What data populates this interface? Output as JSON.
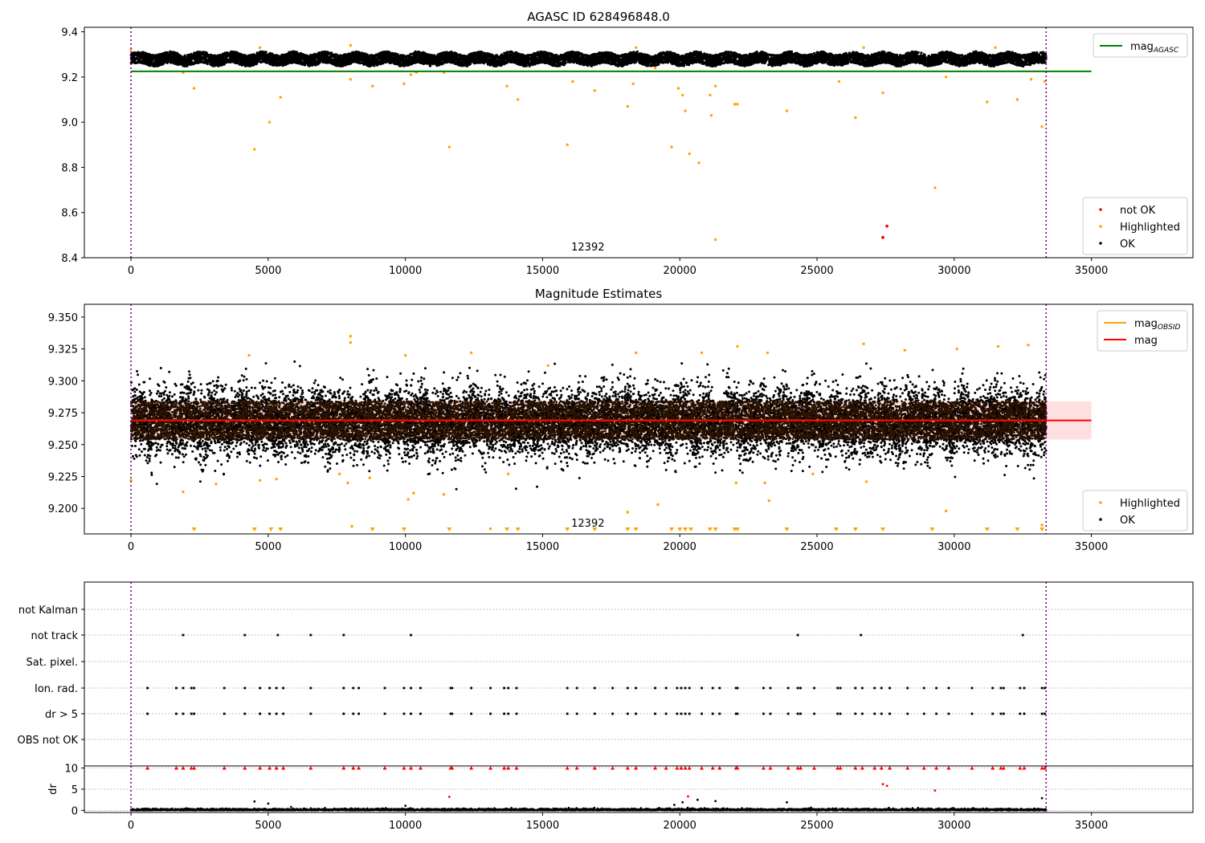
{
  "chart_data": [
    {
      "type": "scatter",
      "title": "AGASC ID 628496848.0",
      "xlim": [
        -1700,
        38700
      ],
      "ylim": [
        8.4,
        9.42
      ],
      "x_ticks": [
        0,
        5000,
        10000,
        15000,
        20000,
        25000,
        30000,
        35000
      ],
      "y_ticks": [
        8.4,
        8.6,
        8.8,
        9.0,
        9.2,
        9.4
      ],
      "grid": false,
      "legend_upper": {
        "placement": "upper-right",
        "entries": [
          {
            "name": "mag",
            "sub": "AGASC",
            "color": "#008000",
            "kind": "line"
          }
        ]
      },
      "legend_lower": {
        "placement": "lower-right",
        "entries": [
          {
            "name": "not OK",
            "color": "#ff0000",
            "kind": "dot"
          },
          {
            "name": "Highlighted",
            "color": "#ffa500",
            "kind": "dot"
          },
          {
            "name": "OK",
            "color": "#000000",
            "kind": "dot"
          }
        ]
      },
      "obsid_label": "12392",
      "obsid_label_x": 16650,
      "mag_agasc": 9.225,
      "obs_bounds": [
        0,
        33350
      ],
      "ok_band": {
        "x": [
          0,
          33350
        ],
        "center": 9.28,
        "halfwidth": 0.025
      },
      "highlighted": [
        [
          0,
          9.32
        ],
        [
          4500,
          8.88
        ],
        [
          5050,
          9.0
        ],
        [
          5450,
          9.11
        ],
        [
          2300,
          9.15
        ],
        [
          8800,
          9.16
        ],
        [
          9950,
          9.17
        ],
        [
          10200,
          9.21
        ],
        [
          11600,
          8.89
        ],
        [
          13700,
          9.16
        ],
        [
          14100,
          9.1
        ],
        [
          15900,
          8.9
        ],
        [
          16100,
          9.18
        ],
        [
          16900,
          9.14
        ],
        [
          18100,
          9.07
        ],
        [
          18300,
          9.17
        ],
        [
          19100,
          9.24
        ],
        [
          19700,
          8.89
        ],
        [
          19950,
          9.15
        ],
        [
          20100,
          9.12
        ],
        [
          20200,
          9.05
        ],
        [
          20350,
          8.86
        ],
        [
          20700,
          8.82
        ],
        [
          21100,
          9.12
        ],
        [
          21150,
          9.03
        ],
        [
          21300,
          9.16
        ],
        [
          21300,
          8.48
        ],
        [
          22000,
          9.08
        ],
        [
          22100,
          9.08
        ],
        [
          23900,
          9.05
        ],
        [
          25800,
          9.18
        ],
        [
          26400,
          9.02
        ],
        [
          27400,
          9.13
        ],
        [
          29300,
          8.71
        ],
        [
          29700,
          9.2
        ],
        [
          31200,
          9.09
        ],
        [
          32300,
          9.1
        ],
        [
          32800,
          9.19
        ],
        [
          33200,
          8.98
        ],
        [
          33300,
          9.18
        ],
        [
          8000,
          9.34
        ],
        [
          8000,
          9.19
        ],
        [
          1900,
          9.22
        ],
        [
          10400,
          9.22
        ],
        [
          11400,
          9.22
        ],
        [
          26700,
          9.33
        ],
        [
          31500,
          9.33
        ],
        [
          18400,
          9.33
        ],
        [
          4700,
          9.33
        ]
      ],
      "not_ok": [
        [
          27400,
          8.49
        ],
        [
          27550,
          8.54
        ]
      ]
    },
    {
      "type": "scatter",
      "title": "Magnitude Estimates",
      "xlim": [
        -1700,
        38700
      ],
      "ylim": [
        9.18,
        9.36
      ],
      "x_ticks": [
        0,
        5000,
        10000,
        15000,
        20000,
        25000,
        30000,
        35000
      ],
      "y_ticks": [
        9.2,
        9.225,
        9.25,
        9.275,
        9.3,
        9.325,
        9.35
      ],
      "grid": false,
      "legend_upper": {
        "placement": "upper-right",
        "entries": [
          {
            "name": "mag",
            "sub": "OBSID",
            "color": "#ffa500",
            "kind": "line"
          },
          {
            "name": "mag",
            "sub": "",
            "color": "#ff0000",
            "kind": "line"
          }
        ]
      },
      "legend_lower": {
        "placement": "lower-right",
        "entries": [
          {
            "name": "Highlighted",
            "color": "#ffa500",
            "kind": "dot"
          },
          {
            "name": "OK",
            "color": "#000000",
            "kind": "dot"
          }
        ]
      },
      "obsid_label": "12392",
      "obsid_label_x": 16650,
      "mag": 9.269,
      "mag_band": [
        9.254,
        9.284
      ],
      "mag_obsid": 9.269,
      "obs_bounds": [
        0,
        33350
      ],
      "highlighted": [
        [
          0,
          9.222
        ],
        [
          1900,
          9.213
        ],
        [
          3100,
          9.219
        ],
        [
          4700,
          9.222
        ],
        [
          5300,
          9.223
        ],
        [
          7600,
          9.227
        ],
        [
          7900,
          9.22
        ],
        [
          8000,
          9.335
        ],
        [
          8000,
          9.33
        ],
        [
          8050,
          9.186
        ],
        [
          8700,
          9.224
        ],
        [
          10100,
          9.207
        ],
        [
          10300,
          9.212
        ],
        [
          11400,
          9.211
        ],
        [
          13100,
          9.184
        ],
        [
          13750,
          9.227
        ],
        [
          18100,
          9.197
        ],
        [
          19200,
          9.203
        ],
        [
          22050,
          9.22
        ],
        [
          22100,
          9.327
        ],
        [
          23100,
          9.22
        ],
        [
          23250,
          9.206
        ],
        [
          24850,
          9.227
        ],
        [
          26800,
          9.221
        ],
        [
          29700,
          9.198
        ],
        [
          31600,
          9.327
        ],
        [
          32700,
          9.328
        ],
        [
          33200,
          9.187
        ],
        [
          26700,
          9.329
        ],
        [
          18400,
          9.322
        ],
        [
          4300,
          9.32
        ],
        [
          10000,
          9.32
        ],
        [
          12400,
          9.322
        ],
        [
          20800,
          9.322
        ],
        [
          28200,
          9.324
        ],
        [
          30100,
          9.325
        ],
        [
          23200,
          9.322
        ],
        [
          15200,
          9.312
        ]
      ],
      "clipped_low_x": [
        2300,
        4500,
        5100,
        5450,
        8800,
        9950,
        11600,
        13700,
        14100,
        15900,
        16900,
        18100,
        18400,
        19700,
        20000,
        20200,
        20400,
        21100,
        21300,
        22000,
        22100,
        23900,
        25700,
        26400,
        27400,
        29200,
        31200,
        32300,
        33200
      ]
    },
    {
      "type": "scatter",
      "subtype": "flag-strip",
      "xlim": [
        -1700,
        38700
      ],
      "flags": [
        "not Kalman",
        "not track",
        "Sat. pixel.",
        "Ion. rad.",
        "dr > 5",
        "OBS not OK"
      ],
      "grid": "dotted-horizontal",
      "obs_bounds": [
        0,
        33350
      ],
      "not_track_x": [
        1900,
        4150,
        5350,
        6550,
        7750,
        10200,
        24300,
        26600,
        32500
      ],
      "ion_rad_x": [
        600,
        1650,
        1900,
        2200,
        2300,
        3400,
        4150,
        4700,
        5050,
        5300,
        5550,
        6550,
        7750,
        8100,
        8300,
        9250,
        9950,
        10200,
        10550,
        11650,
        11700,
        12400,
        13100,
        13600,
        13750,
        14050,
        15900,
        16250,
        16900,
        17550,
        18100,
        18400,
        19100,
        19500,
        19900,
        20050,
        20200,
        20350,
        20800,
        21200,
        21450,
        22050,
        22100,
        23050,
        23300,
        23950,
        24300,
        24400,
        24900,
        25750,
        25850,
        26400,
        26650,
        27100,
        27350,
        27650,
        28300,
        28900,
        29350,
        29800,
        30650,
        31400,
        31700,
        31800,
        32400,
        32550,
        33200,
        33300
      ],
      "dr5_x": [
        600,
        1650,
        1900,
        2200,
        2300,
        3400,
        4150,
        4700,
        5050,
        5300,
        5550,
        6550,
        7750,
        8100,
        8300,
        9250,
        9950,
        10200,
        10550,
        11650,
        11700,
        12400,
        13100,
        13600,
        13750,
        14050,
        15900,
        16250,
        16900,
        17550,
        18100,
        18400,
        19100,
        19500,
        19900,
        20050,
        20200,
        20350,
        20800,
        21200,
        21450,
        22050,
        22100,
        23050,
        23300,
        23950,
        24300,
        24400,
        24900,
        25750,
        25850,
        26400,
        26650,
        27100,
        27350,
        27650,
        28300,
        28900,
        29350,
        29800,
        30650,
        31400,
        31700,
        31800,
        32400,
        32550,
        33200,
        33300
      ]
    },
    {
      "type": "scatter",
      "ylabel": "dr",
      "xlim": [
        -1700,
        38700
      ],
      "ylim": [
        -0.5,
        10.5
      ],
      "x_ticks": [
        0,
        5000,
        10000,
        15000,
        20000,
        25000,
        30000,
        35000
      ],
      "y_ticks": [
        0,
        5,
        10
      ],
      "grid": "dotted-horizontal",
      "obs_bounds": [
        0,
        33350
      ],
      "clipped_high_x": [
        600,
        1650,
        1900,
        2200,
        2300,
        3400,
        4150,
        4700,
        5050,
        5300,
        5550,
        6550,
        7750,
        8100,
        8300,
        9250,
        9950,
        10200,
        10550,
        11650,
        11700,
        12400,
        13100,
        13600,
        13750,
        14050,
        15900,
        16250,
        16900,
        17550,
        18100,
        18400,
        19100,
        19500,
        19900,
        20050,
        20200,
        20350,
        20800,
        21200,
        21450,
        22050,
        22100,
        23050,
        23300,
        23950,
        24300,
        24400,
        24900,
        25750,
        25850,
        26400,
        26650,
        27100,
        27350,
        27650,
        28300,
        28900,
        29350,
        29800,
        30650,
        31400,
        31700,
        31800,
        32400,
        32550,
        33200,
        33300
      ],
      "red_points": [
        [
          11600,
          3.2
        ],
        [
          20300,
          3.3
        ],
        [
          27400,
          6.2
        ],
        [
          27550,
          5.8
        ],
        [
          29300,
          4.7
        ]
      ],
      "black_outliers": [
        [
          4500,
          2.1
        ],
        [
          5000,
          1.6
        ],
        [
          10000,
          1.1
        ],
        [
          19800,
          1.3
        ],
        [
          20100,
          1.9
        ],
        [
          20650,
          2.5
        ],
        [
          21300,
          2.2
        ],
        [
          23900,
          1.9
        ],
        [
          33200,
          2.9
        ]
      ]
    }
  ]
}
